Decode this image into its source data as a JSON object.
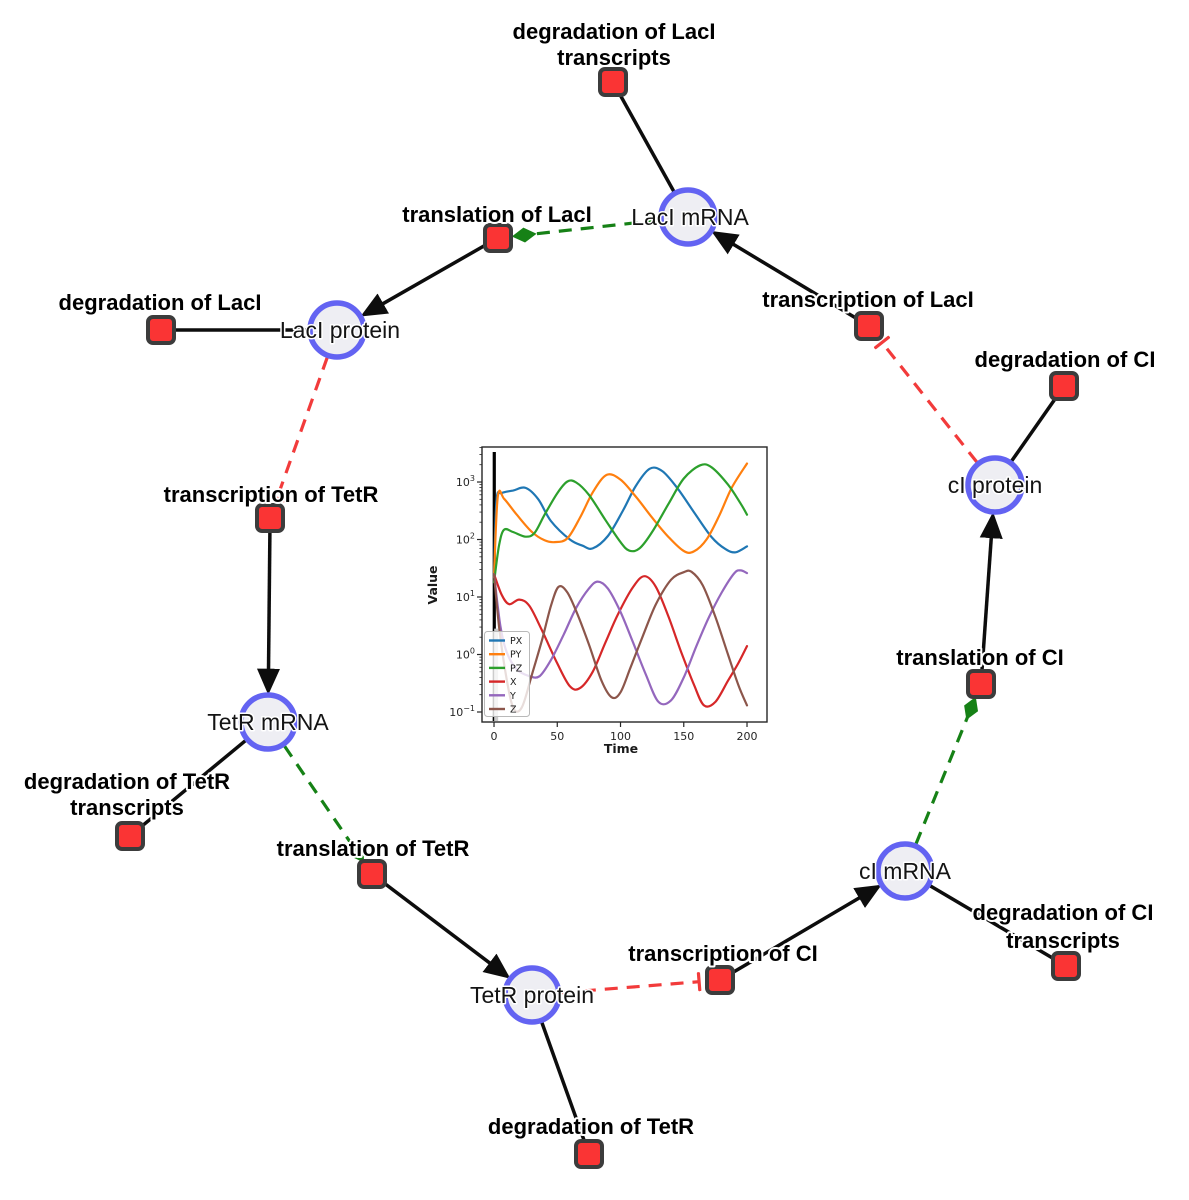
{
  "diagram": {
    "species": {
      "laci_mrna": {
        "label": "LacI mRNA"
      },
      "laci_protein": {
        "label": "LacI protein"
      },
      "tetr_mrna": {
        "label": "TetR mRNA"
      },
      "tetr_protein": {
        "label": "TetR protein"
      },
      "ci_mrna": {
        "label": "cI mRNA"
      },
      "ci_protein": {
        "label": "cI protein"
      }
    },
    "reactions": {
      "deg_laci_transcripts": {
        "lines": [
          "degradation of LacI",
          "transcripts"
        ]
      },
      "translation_laci": {
        "lines": [
          "translation of LacI"
        ]
      },
      "transcription_laci": {
        "lines": [
          "transcription of LacI"
        ]
      },
      "deg_laci": {
        "lines": [
          "degradation of LacI"
        ]
      },
      "deg_ci": {
        "lines": [
          "degradation of CI"
        ]
      },
      "transcription_tetr": {
        "lines": [
          "transcription of TetR"
        ]
      },
      "deg_tetr_transcripts": {
        "lines": [
          "degradation of TetR",
          "transcripts"
        ]
      },
      "translation_tetr": {
        "lines": [
          "translation of TetR"
        ]
      },
      "translation_ci": {
        "lines": [
          "translation of CI"
        ]
      },
      "transcription_ci": {
        "lines": [
          "transcription of CI"
        ]
      },
      "deg_ci_transcripts": {
        "lines": [
          "degradation of CI",
          "transcripts"
        ]
      },
      "deg_tetr": {
        "lines": [
          "degradation of TetR"
        ]
      }
    },
    "edges": [
      {
        "from": "laci_mrna",
        "to": "deg_laci_transcripts",
        "type": "consume"
      },
      {
        "from": "transcription_laci",
        "to": "laci_mrna",
        "type": "produce"
      },
      {
        "from": "laci_mrna",
        "to": "translation_laci",
        "type": "modifier"
      },
      {
        "from": "translation_laci",
        "to": "laci_protein",
        "type": "produce"
      },
      {
        "from": "laci_protein",
        "to": "deg_laci",
        "type": "consume"
      },
      {
        "from": "laci_protein",
        "to": "transcription_tetr",
        "type": "inhibit"
      },
      {
        "from": "transcription_tetr",
        "to": "tetr_mrna",
        "type": "produce"
      },
      {
        "from": "tetr_mrna",
        "to": "deg_tetr_transcripts",
        "type": "consume"
      },
      {
        "from": "tetr_mrna",
        "to": "translation_tetr",
        "type": "modifier"
      },
      {
        "from": "translation_tetr",
        "to": "tetr_protein",
        "type": "produce"
      },
      {
        "from": "tetr_protein",
        "to": "deg_tetr",
        "type": "consume"
      },
      {
        "from": "tetr_protein",
        "to": "transcription_ci",
        "type": "inhibit"
      },
      {
        "from": "transcription_ci",
        "to": "ci_mrna",
        "type": "produce"
      },
      {
        "from": "ci_mrna",
        "to": "deg_ci_transcripts",
        "type": "consume"
      },
      {
        "from": "ci_mrna",
        "to": "translation_ci",
        "type": "modifier"
      },
      {
        "from": "translation_ci",
        "to": "ci_protein",
        "type": "produce"
      },
      {
        "from": "ci_protein",
        "to": "deg_ci",
        "type": "consume"
      },
      {
        "from": "ci_protein",
        "to": "transcription_laci",
        "type": "inhibit"
      }
    ],
    "colors": {
      "species_fill": "#eeeef3",
      "species_stroke": "#6363f2",
      "reaction_fill": "#fa3434",
      "reaction_stroke": "#3c3c3c",
      "edge_black": "#0d0d0d",
      "edge_modifier_green": "#168116",
      "edge_inhibit_red": "#f23b3b"
    }
  },
  "chart_data": {
    "type": "line",
    "title": "",
    "xlabel": "Time",
    "ylabel": "Value",
    "x_ticks": [
      0,
      50,
      100,
      150,
      200
    ],
    "y_scale": "log",
    "y_tick_exponents": [
      -1,
      0,
      1,
      2,
      3
    ],
    "xlim": [
      -9.5,
      215.8
    ],
    "ylim_log": [
      -1.174,
      3.609
    ],
    "grid": false,
    "legend_position": "lower left",
    "annotations": [
      {
        "type": "vline",
        "x": 0.2,
        "color": "#000000",
        "width": 3.2
      },
      {
        "type": "vline",
        "x": 1.7,
        "color": "#c9c9c9",
        "width": 4,
        "ylog_top": 0.45
      }
    ],
    "series": [
      {
        "name": "PX",
        "color": "#1f77b4",
        "points": [
          [
            0,
            22
          ],
          [
            2,
            480
          ],
          [
            6,
            640
          ],
          [
            15,
            710
          ],
          [
            25,
            790
          ],
          [
            35,
            500
          ],
          [
            45,
            210
          ],
          [
            60,
            100
          ],
          [
            70,
            78
          ],
          [
            78,
            70
          ],
          [
            90,
            115
          ],
          [
            102,
            320
          ],
          [
            112,
            850
          ],
          [
            123,
            1700
          ],
          [
            133,
            1550
          ],
          [
            145,
            780
          ],
          [
            158,
            300
          ],
          [
            172,
            110
          ],
          [
            183,
            68
          ],
          [
            191,
            60
          ],
          [
            200,
            76
          ]
        ]
      },
      {
        "name": "PY",
        "color": "#ff7f0e",
        "points": [
          [
            0,
            22
          ],
          [
            3,
            560
          ],
          [
            8,
            510
          ],
          [
            18,
            270
          ],
          [
            30,
            135
          ],
          [
            40,
            97
          ],
          [
            48,
            90
          ],
          [
            58,
            105
          ],
          [
            68,
            240
          ],
          [
            78,
            660
          ],
          [
            89,
            1330
          ],
          [
            100,
            1100
          ],
          [
            112,
            560
          ],
          [
            125,
            240
          ],
          [
            138,
            110
          ],
          [
            150,
            63
          ],
          [
            158,
            62
          ],
          [
            168,
            100
          ],
          [
            178,
            260
          ],
          [
            188,
            800
          ],
          [
            200,
            2100
          ]
        ]
      },
      {
        "name": "PZ",
        "color": "#2ca02c",
        "points": [
          [
            0,
            18
          ],
          [
            4,
            80
          ],
          [
            8,
            148
          ],
          [
            15,
            135
          ],
          [
            25,
            112
          ],
          [
            32,
            130
          ],
          [
            40,
            270
          ],
          [
            50,
            640
          ],
          [
            58,
            1020
          ],
          [
            65,
            980
          ],
          [
            75,
            600
          ],
          [
            88,
            220
          ],
          [
            100,
            90
          ],
          [
            107,
            64
          ],
          [
            115,
            70
          ],
          [
            125,
            135
          ],
          [
            138,
            420
          ],
          [
            150,
            1150
          ],
          [
            163,
            1950
          ],
          [
            172,
            1800
          ],
          [
            185,
            900
          ],
          [
            195,
            420
          ],
          [
            200,
            270
          ]
        ]
      },
      {
        "name": "X",
        "color": "#d62728",
        "points": [
          [
            0,
            25
          ],
          [
            6,
            11
          ],
          [
            12,
            7.5
          ],
          [
            20,
            9
          ],
          [
            28,
            7
          ],
          [
            38,
            2.6
          ],
          [
            50,
            0.7
          ],
          [
            60,
            0.28
          ],
          [
            68,
            0.26
          ],
          [
            78,
            0.5
          ],
          [
            88,
            1.6
          ],
          [
            98,
            5
          ],
          [
            110,
            15
          ],
          [
            119,
            23
          ],
          [
            128,
            15
          ],
          [
            138,
            4.5
          ],
          [
            148,
            1.1
          ],
          [
            158,
            0.3
          ],
          [
            166,
            0.13
          ],
          [
            175,
            0.15
          ],
          [
            185,
            0.35
          ],
          [
            193,
            0.7
          ],
          [
            200,
            1.4
          ]
        ]
      },
      {
        "name": "Y",
        "color": "#9467bd",
        "points": [
          [
            0,
            25
          ],
          [
            5,
            3.2
          ],
          [
            10,
            1.1
          ],
          [
            18,
            0.55
          ],
          [
            28,
            0.42
          ],
          [
            36,
            0.42
          ],
          [
            45,
            0.8
          ],
          [
            55,
            2.2
          ],
          [
            65,
            6.5
          ],
          [
            75,
            14
          ],
          [
            82,
            18.5
          ],
          [
            90,
            14
          ],
          [
            100,
            5.5
          ],
          [
            110,
            1.6
          ],
          [
            120,
            0.45
          ],
          [
            130,
            0.15
          ],
          [
            140,
            0.16
          ],
          [
            150,
            0.4
          ],
          [
            160,
            1.4
          ],
          [
            170,
            4.5
          ],
          [
            180,
            12
          ],
          [
            190,
            26
          ],
          [
            195,
            29
          ],
          [
            200,
            26
          ]
        ]
      },
      {
        "name": "Z",
        "color": "#8c564b",
        "points": [
          [
            0,
            25
          ],
          [
            4,
            3
          ],
          [
            9,
            0.5
          ],
          [
            15,
            0.12
          ],
          [
            22,
            0.12
          ],
          [
            30,
            0.45
          ],
          [
            38,
            1.8
          ],
          [
            45,
            7
          ],
          [
            51,
            15
          ],
          [
            58,
            12
          ],
          [
            66,
            5
          ],
          [
            75,
            1.5
          ],
          [
            85,
            0.35
          ],
          [
            93,
            0.18
          ],
          [
            100,
            0.22
          ],
          [
            108,
            0.6
          ],
          [
            118,
            2.2
          ],
          [
            128,
            7.5
          ],
          [
            140,
            20
          ],
          [
            150,
            27
          ],
          [
            156,
            27.5
          ],
          [
            165,
            16
          ],
          [
            175,
            4.5
          ],
          [
            185,
            1
          ],
          [
            193,
            0.3
          ],
          [
            200,
            0.13
          ]
        ]
      }
    ]
  }
}
